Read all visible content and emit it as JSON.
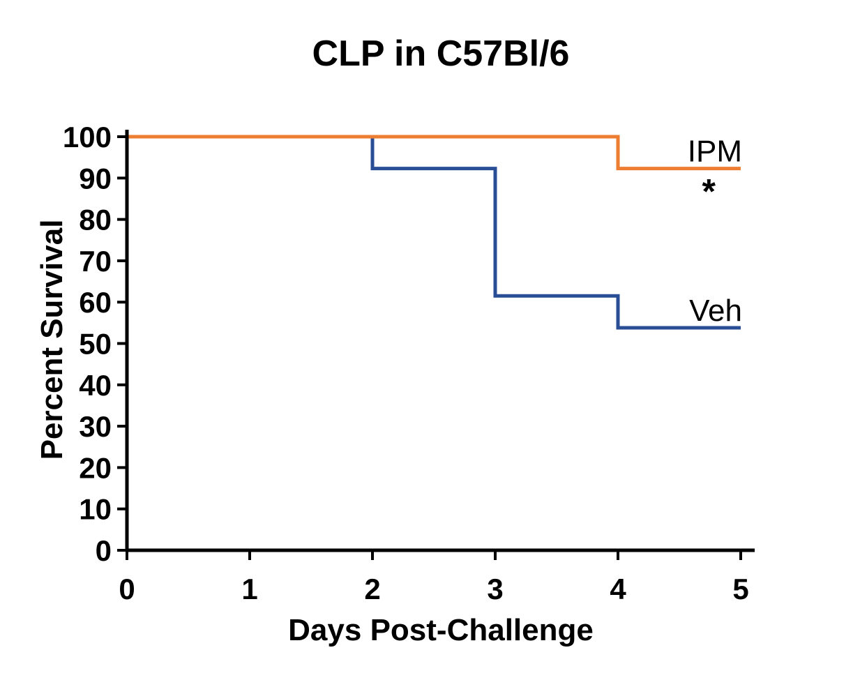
{
  "chart_data": {
    "type": "line",
    "step": true,
    "title": "CLP in C57Bl/6",
    "xlabel": "Days Post-Challenge",
    "ylabel": "Percent Survival",
    "xlim": [
      0,
      5
    ],
    "ylim": [
      0,
      100
    ],
    "xticks": [
      0,
      1,
      2,
      3,
      4,
      5
    ],
    "yticks": [
      0,
      10,
      20,
      30,
      40,
      50,
      60,
      70,
      80,
      90,
      100
    ],
    "grid": false,
    "series": [
      {
        "name": "IPM",
        "color": "#ED7D31",
        "x": [
          0,
          4,
          5
        ],
        "y": [
          100,
          92.3,
          92.3
        ]
      },
      {
        "name": "Veh",
        "color": "#2A4E96",
        "x": [
          0,
          2,
          3,
          4,
          5
        ],
        "y": [
          100,
          92.3,
          61.5,
          53.8,
          53.8
        ]
      }
    ],
    "annotations": [
      {
        "text": "*",
        "series": "IPM"
      }
    ]
  }
}
